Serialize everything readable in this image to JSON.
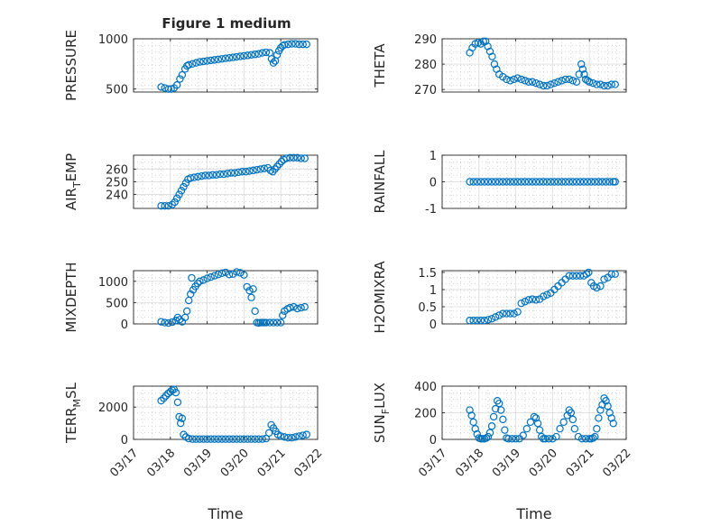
{
  "figure": {
    "title": "Figure 1 medium",
    "marker_color": "#0072BD",
    "axis_color": "#262626",
    "grid_color": "#c8c8c8"
  },
  "chart_data": [
    {
      "type": "scatter",
      "ylabel": "PRESSURE",
      "xlim": [
        0,
        5
      ],
      "ylim": [
        470,
        1000
      ],
      "yticks": [
        500,
        1000
      ],
      "x": [
        0.75,
        0.85,
        0.95,
        1.02,
        1.1,
        1.18,
        1.26,
        1.32,
        1.4,
        1.45,
        1.5,
        1.6,
        1.7,
        1.8,
        1.9,
        2.0,
        2.1,
        2.2,
        2.3,
        2.4,
        2.5,
        2.6,
        2.7,
        2.8,
        2.9,
        3.0,
        3.1,
        3.2,
        3.3,
        3.4,
        3.5,
        3.6,
        3.7,
        3.75,
        3.8,
        3.85,
        3.9,
        3.95,
        4.0,
        4.05,
        4.1,
        4.2,
        4.3,
        4.4,
        4.5,
        4.6,
        4.7
      ],
      "y": [
        520,
        510,
        500,
        500,
        510,
        540,
        600,
        640,
        700,
        730,
        740,
        750,
        760,
        770,
        775,
        780,
        785,
        790,
        795,
        800,
        805,
        810,
        815,
        820,
        825,
        830,
        835,
        840,
        845,
        850,
        860,
        865,
        860,
        800,
        760,
        780,
        840,
        880,
        910,
        930,
        940,
        945,
        950,
        950,
        945,
        945,
        945
      ]
    },
    {
      "type": "scatter",
      "ylabel": "THETA",
      "xlim": [
        0,
        5
      ],
      "ylim": [
        269,
        290
      ],
      "yticks": [
        270,
        280,
        290
      ],
      "x": [
        0.75,
        0.82,
        0.9,
        0.98,
        1.05,
        1.12,
        1.18,
        1.24,
        1.3,
        1.36,
        1.42,
        1.48,
        1.55,
        1.65,
        1.75,
        1.85,
        1.95,
        2.05,
        2.15,
        2.25,
        2.35,
        2.45,
        2.55,
        2.65,
        2.75,
        2.85,
        2.95,
        3.05,
        3.15,
        3.25,
        3.35,
        3.45,
        3.55,
        3.65,
        3.72,
        3.78,
        3.82,
        3.86,
        3.9,
        3.95,
        4.0,
        4.1,
        4.2,
        4.3,
        4.4,
        4.5,
        4.6,
        4.7
      ],
      "y": [
        284.5,
        286.5,
        288,
        288.5,
        288,
        289,
        289,
        287,
        285,
        283,
        280,
        278,
        276,
        275,
        274,
        273.5,
        274,
        274.5,
        274,
        273.5,
        273,
        273,
        272.5,
        272,
        271.5,
        271.5,
        272,
        272.5,
        273,
        273.5,
        274,
        274,
        273.5,
        273,
        276,
        280,
        278,
        276,
        274,
        273.5,
        273,
        272.5,
        272,
        272,
        271.5,
        271.5,
        272,
        272
      ]
    },
    {
      "type": "scatter",
      "ylabel": "AIR_TEMP",
      "xlim": [
        0,
        5
      ],
      "ylim": [
        229,
        271
      ],
      "yticks": [
        240,
        250,
        260
      ],
      "x": [
        0.75,
        0.85,
        0.95,
        1.05,
        1.12,
        1.18,
        1.24,
        1.3,
        1.36,
        1.42,
        1.48,
        1.55,
        1.65,
        1.75,
        1.85,
        1.95,
        2.05,
        2.15,
        2.25,
        2.35,
        2.45,
        2.55,
        2.65,
        2.75,
        2.85,
        2.95,
        3.05,
        3.15,
        3.25,
        3.35,
        3.45,
        3.55,
        3.65,
        3.72,
        3.78,
        3.84,
        3.9,
        3.96,
        4.02,
        4.08,
        4.15,
        4.25,
        4.35,
        4.45,
        4.55,
        4.65
      ],
      "y": [
        231,
        231,
        231,
        232,
        234,
        237,
        240,
        243,
        246,
        249,
        252,
        253,
        253.5,
        254,
        254.5,
        255,
        255,
        255.5,
        255.5,
        256,
        256,
        256.5,
        257,
        257,
        257.5,
        258,
        258,
        258.5,
        259,
        259.5,
        260,
        260.5,
        261,
        259,
        258,
        260,
        262,
        264,
        266,
        267.5,
        268.5,
        269,
        269,
        269,
        268.5,
        268.5
      ]
    },
    {
      "type": "scatter",
      "ylabel": "RAINFALL",
      "xlim": [
        0,
        5
      ],
      "ylim": [
        -1,
        1
      ],
      "yticks": [
        -1,
        0,
        1
      ],
      "x": [
        0.75,
        0.85,
        0.95,
        1.05,
        1.15,
        1.25,
        1.35,
        1.45,
        1.55,
        1.65,
        1.75,
        1.85,
        1.95,
        2.05,
        2.15,
        2.25,
        2.35,
        2.45,
        2.55,
        2.65,
        2.75,
        2.85,
        2.95,
        3.05,
        3.15,
        3.25,
        3.35,
        3.45,
        3.55,
        3.65,
        3.75,
        3.85,
        3.95,
        4.05,
        4.15,
        4.25,
        4.35,
        4.45,
        4.55,
        4.65,
        4.7
      ],
      "y": [
        0,
        0,
        0,
        0,
        0,
        0,
        0,
        0,
        0,
        0,
        0,
        0,
        0,
        0,
        0,
        0,
        0,
        0,
        0,
        0,
        0,
        0,
        0,
        0,
        0,
        0,
        0,
        0,
        0,
        0,
        0,
        0,
        0,
        0,
        0,
        0,
        0,
        0,
        0,
        0,
        0
      ]
    },
    {
      "type": "scatter",
      "ylabel": "MIXDEPTH",
      "xlim": [
        0,
        5
      ],
      "ylim": [
        0,
        1250
      ],
      "yticks": [
        0,
        500,
        1000
      ],
      "x": [
        0.75,
        0.85,
        0.95,
        1.05,
        1.15,
        1.2,
        1.25,
        1.32,
        1.4,
        1.45,
        1.5,
        1.55,
        1.58,
        1.62,
        1.68,
        1.74,
        1.8,
        1.9,
        2.0,
        2.1,
        2.2,
        2.3,
        2.4,
        2.5,
        2.6,
        2.7,
        2.8,
        2.9,
        3.0,
        3.08,
        3.15,
        3.2,
        3.25,
        3.3,
        3.35,
        3.4,
        3.45,
        3.5,
        3.55,
        3.6,
        3.7,
        3.8,
        3.9,
        4.0,
        4.05,
        4.1,
        4.18,
        4.25,
        4.35,
        4.45,
        4.55,
        4.65
      ],
      "y": [
        50,
        30,
        20,
        40,
        80,
        150,
        100,
        50,
        150,
        300,
        550,
        700,
        1080,
        800,
        880,
        950,
        1000,
        1030,
        1070,
        1100,
        1130,
        1160,
        1190,
        1210,
        1160,
        1170,
        1220,
        1200,
        1150,
        870,
        780,
        620,
        820,
        300,
        30,
        20,
        30,
        30,
        30,
        30,
        30,
        30,
        30,
        30,
        200,
        300,
        350,
        380,
        400,
        360,
        380,
        400
      ]
    },
    {
      "type": "scatter",
      "ylabel": "H2OMIXRA",
      "xlim": [
        0,
        5
      ],
      "ylim": [
        0,
        1.55
      ],
      "yticks": [
        0,
        0.5,
        1,
        1.5
      ],
      "x": [
        0.75,
        0.85,
        0.95,
        1.05,
        1.15,
        1.25,
        1.35,
        1.45,
        1.55,
        1.65,
        1.75,
        1.85,
        1.95,
        2.05,
        2.15,
        2.25,
        2.35,
        2.45,
        2.55,
        2.65,
        2.75,
        2.85,
        2.95,
        3.05,
        3.15,
        3.25,
        3.35,
        3.45,
        3.55,
        3.65,
        3.75,
        3.85,
        3.92,
        3.98,
        4.05,
        4.12,
        4.2,
        4.3,
        4.4,
        4.5,
        4.6,
        4.7
      ],
      "y": [
        0.1,
        0.1,
        0.1,
        0.1,
        0.1,
        0.12,
        0.15,
        0.2,
        0.25,
        0.3,
        0.3,
        0.3,
        0.3,
        0.35,
        0.6,
        0.65,
        0.7,
        0.72,
        0.7,
        0.72,
        0.8,
        0.85,
        0.9,
        1.0,
        1.1,
        1.2,
        1.3,
        1.4,
        1.4,
        1.4,
        1.4,
        1.4,
        1.45,
        1.5,
        1.2,
        1.1,
        1.05,
        1.1,
        1.3,
        1.35,
        1.45,
        1.45
      ]
    },
    {
      "type": "scatter",
      "ylabel": "TERR_MSL",
      "xlim": [
        0,
        5
      ],
      "ylim": [
        0,
        3300
      ],
      "yticks": [
        0,
        2000
      ],
      "x": [
        0.75,
        0.82,
        0.88,
        0.94,
        1.0,
        1.05,
        1.1,
        1.15,
        1.2,
        1.24,
        1.28,
        1.32,
        1.36,
        1.42,
        1.5,
        1.6,
        1.7,
        1.8,
        1.9,
        2.0,
        2.1,
        2.2,
        2.3,
        2.4,
        2.5,
        2.6,
        2.7,
        2.8,
        2.9,
        3.0,
        3.1,
        3.2,
        3.3,
        3.4,
        3.5,
        3.6,
        3.68,
        3.74,
        3.8,
        3.86,
        3.92,
        4.0,
        4.1,
        4.2,
        4.3,
        4.4,
        4.5,
        4.6,
        4.7
      ],
      "y": [
        2400,
        2550,
        2700,
        2850,
        2950,
        3050,
        3100,
        2900,
        2300,
        1400,
        1000,
        1300,
        300,
        150,
        50,
        20,
        20,
        20,
        20,
        20,
        20,
        20,
        20,
        20,
        20,
        20,
        20,
        20,
        20,
        20,
        20,
        20,
        20,
        20,
        20,
        50,
        400,
        900,
        700,
        500,
        300,
        200,
        150,
        100,
        100,
        150,
        200,
        250,
        300
      ]
    },
    {
      "type": "scatter",
      "ylabel": "SUN_FLUX",
      "xlim": [
        0,
        5
      ],
      "ylim": [
        0,
        400
      ],
      "yticks": [
        0,
        200,
        400
      ],
      "x": [
        0.75,
        0.8,
        0.85,
        0.9,
        0.95,
        1.0,
        1.05,
        1.1,
        1.15,
        1.2,
        1.25,
        1.3,
        1.35,
        1.4,
        1.45,
        1.5,
        1.55,
        1.6,
        1.65,
        1.7,
        1.75,
        1.8,
        1.9,
        2.0,
        2.1,
        2.2,
        2.3,
        2.4,
        2.5,
        2.55,
        2.6,
        2.65,
        2.7,
        2.75,
        2.8,
        2.9,
        3.0,
        3.1,
        3.2,
        3.3,
        3.4,
        3.45,
        3.5,
        3.55,
        3.6,
        3.7,
        3.8,
        3.9,
        4.0,
        4.05,
        4.1,
        4.15,
        4.2,
        4.25,
        4.3,
        4.35,
        4.4,
        4.45,
        4.5,
        4.55,
        4.6,
        4.65
      ],
      "y": [
        220,
        180,
        130,
        80,
        40,
        10,
        5,
        5,
        5,
        10,
        20,
        50,
        100,
        170,
        230,
        290,
        270,
        220,
        150,
        70,
        10,
        5,
        5,
        5,
        5,
        30,
        80,
        130,
        170,
        160,
        120,
        70,
        20,
        5,
        5,
        5,
        5,
        20,
        80,
        130,
        180,
        220,
        200,
        150,
        80,
        20,
        5,
        5,
        5,
        5,
        10,
        20,
        80,
        160,
        220,
        260,
        310,
        290,
        250,
        200,
        160,
        120
      ]
    }
  ],
  "subplots": [
    {
      "ylabel_base": "PRESSURE",
      "ylabel_sub": "",
      "ylabel_post": "",
      "ytick_labels": [
        "500",
        "1000"
      ],
      "xtick_labels": []
    },
    {
      "ylabel_base": "THETA",
      "ylabel_sub": "",
      "ylabel_post": "",
      "ytick_labels": [
        "270",
        "280",
        "290"
      ],
      "xtick_labels": []
    },
    {
      "ylabel_base": "AIR",
      "ylabel_sub": "T",
      "ylabel_post": "EMP",
      "ytick_labels": [
        "240",
        "250",
        "260"
      ],
      "xtick_labels": []
    },
    {
      "ylabel_base": "RAINFALL",
      "ylabel_sub": "",
      "ylabel_post": "",
      "ytick_labels": [
        "-1",
        "0",
        "1"
      ],
      "xtick_labels": []
    },
    {
      "ylabel_base": "MIXDEPTH",
      "ylabel_sub": "",
      "ylabel_post": "",
      "ytick_labels": [
        "0",
        "500",
        "1000"
      ],
      "xtick_labels": []
    },
    {
      "ylabel_base": "H2OMIXRA",
      "ylabel_sub": "",
      "ylabel_post": "",
      "ytick_labels": [
        "0",
        "0.5",
        "1",
        "1.5"
      ],
      "xtick_labels": []
    },
    {
      "ylabel_base": "TERR",
      "ylabel_sub": "M",
      "ylabel_post": "SL",
      "ytick_labels": [
        "0",
        "2000"
      ],
      "xtick_labels": [
        "03/17",
        "03/18",
        "03/19",
        "03/20",
        "03/21",
        "03/22"
      ],
      "xlabel": "Time"
    },
    {
      "ylabel_base": "SUN",
      "ylabel_sub": "F",
      "ylabel_post": "LUX",
      "ytick_labels": [
        "0",
        "200",
        "400"
      ],
      "xtick_labels": [
        "03/17",
        "03/18",
        "03/19",
        "03/20",
        "03/21",
        "03/22"
      ],
      "xlabel": "Time"
    }
  ]
}
